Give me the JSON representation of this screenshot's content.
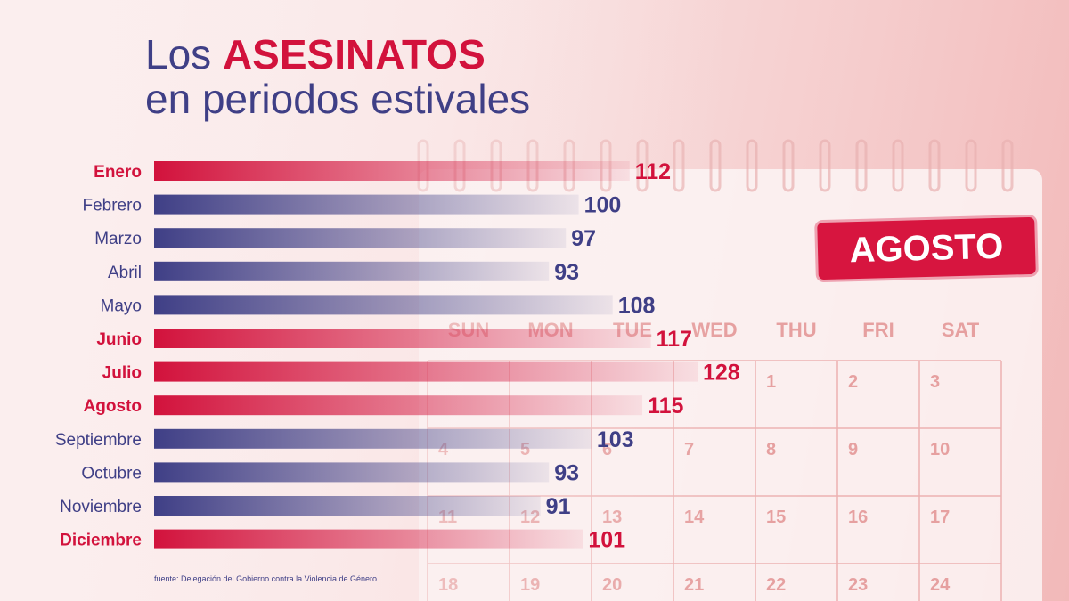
{
  "title": {
    "prefix": "Los ",
    "highlight": "ASESINATOS",
    "line2": "en periodos estivales"
  },
  "badge": "AGOSTO",
  "source": "fuente: Delegación del Gobierno contra la Violencia de Género",
  "calendar": {
    "weekdays": [
      "SUN",
      "MON",
      "TUE",
      "WED",
      "THU",
      "FRI",
      "SAT"
    ],
    "days": [
      "1",
      "2",
      "3",
      "4",
      "5",
      "6",
      "7",
      "8",
      "9",
      "10",
      "11",
      "12",
      "13",
      "14",
      "15",
      "16",
      "17",
      "18",
      "19",
      "20",
      "21",
      "22",
      "23",
      "24"
    ]
  },
  "colors": {
    "highlight": "#d2123c",
    "normal": "#3f3f86"
  },
  "chart_data": {
    "type": "bar",
    "orientation": "horizontal",
    "categories": [
      "Enero",
      "Febrero",
      "Marzo",
      "Abril",
      "Mayo",
      "Junio",
      "Julio",
      "Agosto",
      "Septiembre",
      "Octubre",
      "Noviembre",
      "Diciembre"
    ],
    "values": [
      112,
      100,
      97,
      93,
      108,
      117,
      128,
      115,
      103,
      93,
      91,
      101
    ],
    "highlighted": [
      true,
      false,
      false,
      false,
      false,
      true,
      true,
      true,
      false,
      false,
      false,
      true
    ],
    "title": "Los ASESINATOS en periodos estivales",
    "xlim": [
      0,
      128
    ],
    "grid": false,
    "legend": "none"
  }
}
